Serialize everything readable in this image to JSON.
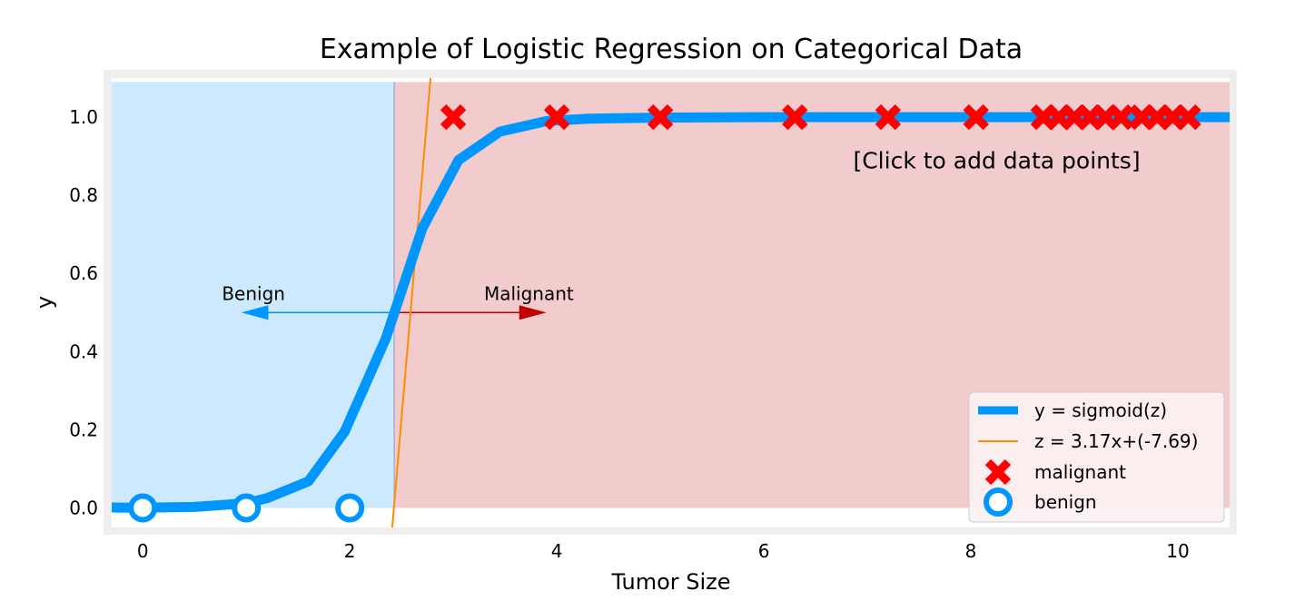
{
  "chart_data": {
    "type": "line",
    "title": "Example of Logistic Regression on Categorical Data",
    "xlabel": "Tumor Size",
    "ylabel": "y",
    "xlim": [
      -0.3,
      10.5
    ],
    "ylim": [
      -0.05,
      1.1
    ],
    "x_ticks": [
      0,
      2,
      4,
      6,
      8,
      10
    ],
    "y_ticks": [
      0.0,
      0.2,
      0.4,
      0.6,
      0.8,
      1.0
    ],
    "x_tick_labels": [
      "0",
      "2",
      "4",
      "6",
      "8",
      "10"
    ],
    "y_tick_labels": [
      "0.0",
      "0.2",
      "0.4",
      "0.6",
      "0.8",
      "1.0"
    ],
    "grid": false,
    "decision_boundary": 2.43,
    "regions": [
      {
        "label": "benign",
        "from": -0.3,
        "to": 2.43,
        "color": "#cce9fd"
      },
      {
        "label": "malignant",
        "from": 2.43,
        "to": 10.5,
        "color": "#f2cbcd"
      }
    ],
    "series": [
      {
        "name": "y = sigmoid(z)",
        "kind": "line",
        "color": "#0096ff",
        "x": [
          -0.3,
          0.0,
          0.5,
          1.0,
          1.2,
          1.6,
          1.95,
          2.35,
          2.7,
          3.05,
          3.45,
          3.9,
          4.3,
          5.0,
          6.0,
          8.0,
          10.0,
          10.5
        ],
        "y": [
          0.001,
          0.0005,
          0.0025,
          0.012,
          0.025,
          0.068,
          0.195,
          0.435,
          0.715,
          0.89,
          0.963,
          0.99,
          0.996,
          0.999,
          1.0,
          1.0,
          1.0,
          1.0
        ]
      },
      {
        "name": "z = 3.17x+(-7.69)",
        "kind": "line",
        "color": "#ff8c00",
        "x": [
          2.41,
          2.78
        ],
        "y": [
          -0.05,
          1.1
        ]
      },
      {
        "name": "malignant",
        "kind": "scatter",
        "marker": "x",
        "color": "#ff0000",
        "x": [
          3.0,
          4.0,
          5.0,
          6.3,
          7.2,
          8.05,
          8.7,
          8.85,
          9.0,
          9.15,
          9.3,
          9.45,
          9.65,
          9.8,
          9.95,
          10.1
        ],
        "y": [
          1,
          1,
          1,
          1,
          1,
          1,
          1,
          1,
          1,
          1,
          1,
          1,
          1,
          1,
          1,
          1
        ]
      },
      {
        "name": "benign",
        "kind": "scatter",
        "marker": "o",
        "color": "#0096ff",
        "x": [
          0.0,
          1.0,
          2.0
        ],
        "y": [
          0,
          0,
          0
        ]
      }
    ],
    "annotations": [
      {
        "text": "Benign",
        "x": 1.07,
        "y": 0.5,
        "arrow_to": 0.95,
        "color": "#0096ff"
      },
      {
        "text": "Malignant",
        "x": 3.73,
        "y": 0.5,
        "arrow_to": 3.9,
        "color": "#c00000"
      },
      {
        "text": "[Click to add data points]",
        "x": 8.25,
        "y": 0.89
      }
    ],
    "legend": {
      "position": "lower-right",
      "entries": [
        "y = sigmoid(z)",
        "z = 3.17x+(-7.69)",
        "malignant",
        "benign"
      ]
    }
  }
}
